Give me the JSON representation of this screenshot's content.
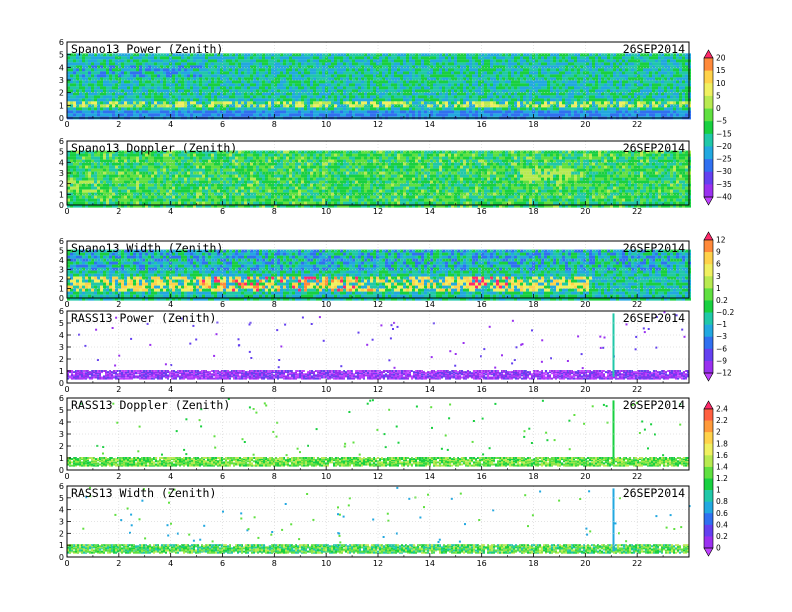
{
  "chart_data": [
    {
      "type": "heatmap",
      "title": "Spano13 Power (Zenith)",
      "date_label": "26SEP2014",
      "xlim": [
        0,
        24
      ],
      "ylim": [
        0,
        6
      ],
      "x_ticks": [
        0,
        2,
        4,
        6,
        8,
        10,
        12,
        14,
        16,
        18,
        20,
        22
      ],
      "y_ticks": [
        0,
        1,
        2,
        3,
        4,
        5,
        6
      ],
      "grid": true,
      "colorbar": "scale_power"
    },
    {
      "type": "heatmap",
      "title": "Spano13 Doppler (Zenith)",
      "date_label": "26SEP2014",
      "xlim": [
        0,
        24
      ],
      "ylim": [
        0,
        6
      ],
      "x_ticks": [
        0,
        2,
        4,
        6,
        8,
        10,
        12,
        14,
        16,
        18,
        20,
        22
      ],
      "y_ticks": [
        0,
        1,
        2,
        3,
        4,
        5,
        6
      ],
      "grid": true,
      "colorbar": "none"
    },
    {
      "type": "heatmap",
      "title": "Spano13 Width (Zenith)",
      "date_label": "26SEP2014",
      "xlim": [
        0,
        24
      ],
      "ylim": [
        0,
        6
      ],
      "x_ticks": [
        0,
        2,
        4,
        6,
        8,
        10,
        12,
        14,
        16,
        18,
        20,
        22
      ],
      "y_ticks": [
        0,
        1,
        2,
        3,
        4,
        5,
        6
      ],
      "grid": true,
      "colorbar": "scale_width"
    },
    {
      "type": "heatmap",
      "title": "RASS13 Power (Zenith)",
      "date_label": "26SEP2014",
      "xlim": [
        0,
        24
      ],
      "ylim": [
        0,
        6
      ],
      "x_ticks": [
        0,
        2,
        4,
        6,
        8,
        10,
        12,
        14,
        16,
        18,
        20,
        22
      ],
      "y_ticks": [
        0,
        1,
        2,
        3,
        4,
        5,
        6
      ],
      "grid": true,
      "colorbar": "scale_width"
    },
    {
      "type": "heatmap",
      "title": "RASS13 Doppler (Zenith)",
      "date_label": "26SEP2014",
      "xlim": [
        0,
        24
      ],
      "ylim": [
        0,
        6
      ],
      "x_ticks": [
        0,
        2,
        4,
        6,
        8,
        10,
        12,
        14,
        16,
        18,
        20,
        22
      ],
      "y_ticks": [
        0,
        1,
        2,
        3,
        4,
        5,
        6
      ],
      "grid": true,
      "colorbar": "scale_rass"
    },
    {
      "type": "heatmap",
      "title": "RASS13 Width (Zenith)",
      "date_label": "26SEP2014",
      "xlim": [
        0,
        24
      ],
      "ylim": [
        0,
        6
      ],
      "x_ticks": [
        0,
        2,
        4,
        6,
        8,
        10,
        12,
        14,
        16,
        18,
        20,
        22
      ],
      "y_ticks": [
        0,
        1,
        2,
        3,
        4,
        5,
        6
      ],
      "grid": true,
      "colorbar": "scale_rass"
    }
  ],
  "colorbars": {
    "scale_power": {
      "labels": [
        "20",
        "15",
        "10",
        "5",
        "0",
        "−5",
        "−15",
        "−20",
        "−25",
        "−30",
        "−35",
        "−40"
      ],
      "colors": [
        "#ff2a6a",
        "#ff8a3a",
        "#ffd24a",
        "#f0f060",
        "#b8ea50",
        "#60e040",
        "#18d040",
        "#20c8a8",
        "#22a8e0",
        "#3070f0",
        "#6440f0",
        "#9a30f0",
        "#c040ff"
      ]
    },
    "scale_width": {
      "labels": [
        "12",
        "9",
        "6",
        "3",
        "1",
        "0.2",
        "−0.2",
        "−1",
        "−3",
        "−6",
        "−9",
        "−12"
      ],
      "colors": [
        "#ff2a6a",
        "#ff8a3a",
        "#ffd24a",
        "#f0f060",
        "#b8ea50",
        "#60e040",
        "#18d040",
        "#20c8a8",
        "#22a8e0",
        "#3070f0",
        "#6440f0",
        "#9a30f0",
        "#c040ff"
      ]
    },
    "scale_rass": {
      "labels": [
        "2.4",
        "2.2",
        "2",
        "1.8",
        "1.6",
        "1.4",
        "1.2",
        "1",
        "0.8",
        "0.6",
        "0.4",
        "0.2",
        "0"
      ],
      "colors": [
        "#ff2a6a",
        "#ff6040",
        "#ff9a3a",
        "#ffd24a",
        "#f0f060",
        "#b8ea50",
        "#60e040",
        "#18d040",
        "#20c8a8",
        "#22a8e0",
        "#3070f0",
        "#6440f0",
        "#9a30f0",
        "#c040ff"
      ]
    }
  },
  "styles": {
    "spano_power": {
      "base": [
        "#18d040",
        "#20c8a8",
        "#22a8e0"
      ],
      "layer": [
        "#b8ea50",
        "#f0f060"
      ],
      "low": [
        "#3070f0",
        "#22a8e0"
      ]
    },
    "spano_doppler": {
      "base": [
        "#18d040",
        "#60e040",
        "#20c8a8"
      ],
      "accent": [
        "#b8ea50"
      ]
    },
    "spano_width": {
      "base": [
        "#22a8e0",
        "#20c8a8",
        "#18d040"
      ],
      "hot": [
        "#f0f060",
        "#ffd24a",
        "#ff8a3a",
        "#ff2a6a"
      ]
    },
    "rass_power": {
      "band": [
        "#9a30f0",
        "#6440f0",
        "#c040ff"
      ],
      "dots": [
        "#6440f0",
        "#9a30f0"
      ],
      "spike": "#20c8a8"
    },
    "rass_doppler": {
      "band": [
        "#60e040",
        "#18d040",
        "#b8ea50"
      ],
      "dots": [
        "#60e040",
        "#18d040"
      ],
      "spike": "#18d040"
    },
    "rass_width": {
      "band": [
        "#60e040",
        "#18d040",
        "#20c8a8",
        "#b8ea50"
      ],
      "dots": [
        "#22a8e0",
        "#60e040"
      ],
      "spike": "#22a8e0"
    }
  }
}
